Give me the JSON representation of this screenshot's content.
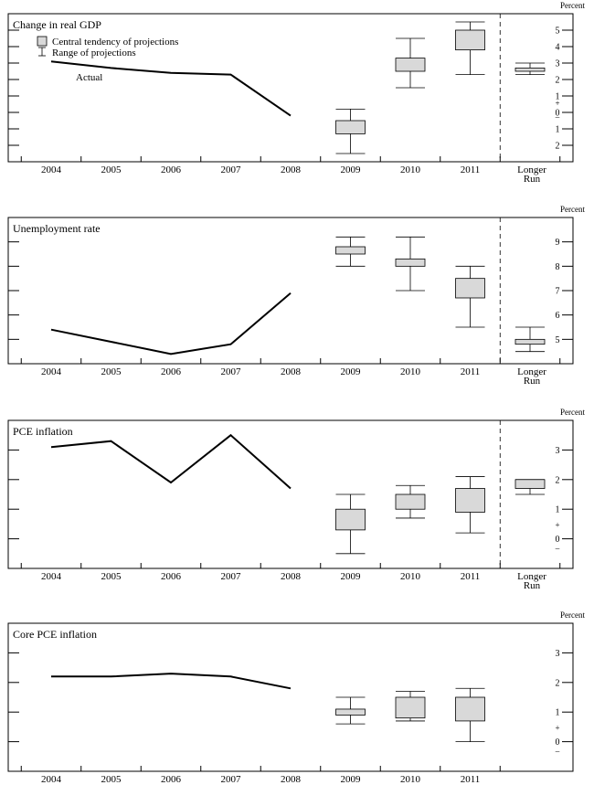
{
  "chart_data": [
    {
      "type": "box",
      "title": "Change in real GDP",
      "unit_label": "Percent",
      "categories": [
        "2004",
        "2005",
        "2006",
        "2007",
        "2008",
        "2009",
        "2010",
        "2011",
        "Longer Run"
      ],
      "ylim": [
        -3,
        6
      ],
      "y_ticks": [
        {
          "value": 5,
          "label": "5"
        },
        {
          "value": 4,
          "label": "4"
        },
        {
          "value": 3,
          "label": "3"
        },
        {
          "value": 2,
          "label": "2"
        },
        {
          "value": 1,
          "label": "1"
        },
        {
          "value": 0,
          "label": "0"
        },
        {
          "value": -1,
          "label": "1"
        },
        {
          "value": -2,
          "label": "2"
        }
      ],
      "sign_marks": {
        "plus": "+",
        "minus": "–",
        "between": [
          0,
          1
        ]
      },
      "legend": {
        "box_label": "Central tendency of projections",
        "range_label": "Range of projections"
      },
      "actual_label": "Actual",
      "actual": {
        "x": [
          "2004",
          "2005",
          "2006",
          "2007",
          "2008"
        ],
        "y": [
          3.1,
          2.7,
          2.4,
          2.3,
          -0.2
        ]
      },
      "projections": [
        {
          "x": "2009",
          "range": [
            -2.5,
            0.2
          ],
          "central": [
            -1.3,
            -0.5
          ]
        },
        {
          "x": "2010",
          "range": [
            1.5,
            4.5
          ],
          "central": [
            2.5,
            3.3
          ]
        },
        {
          "x": "2011",
          "range": [
            2.3,
            5.5
          ],
          "central": [
            3.8,
            5.0
          ]
        },
        {
          "x": "Longer Run",
          "range": [
            2.3,
            3.0
          ],
          "central": [
            2.5,
            2.7
          ]
        }
      ]
    },
    {
      "type": "box",
      "title": "Unemployment rate",
      "unit_label": "Percent",
      "categories": [
        "2004",
        "2005",
        "2006",
        "2007",
        "2008",
        "2009",
        "2010",
        "2011",
        "Longer Run"
      ],
      "ylim": [
        4,
        10
      ],
      "y_ticks": [
        {
          "value": 9,
          "label": "9"
        },
        {
          "value": 8,
          "label": "8"
        },
        {
          "value": 7,
          "label": "7"
        },
        {
          "value": 6,
          "label": "6"
        },
        {
          "value": 5,
          "label": "5"
        }
      ],
      "actual": {
        "x": [
          "2004",
          "2005",
          "2006",
          "2007",
          "2008"
        ],
        "y": [
          5.4,
          4.9,
          4.4,
          4.8,
          6.9
        ]
      },
      "projections": [
        {
          "x": "2009",
          "range": [
            8.0,
            9.2
          ],
          "central": [
            8.5,
            8.8
          ]
        },
        {
          "x": "2010",
          "range": [
            7.0,
            9.2
          ],
          "central": [
            8.0,
            8.3
          ]
        },
        {
          "x": "2011",
          "range": [
            5.5,
            8.0
          ],
          "central": [
            6.7,
            7.5
          ]
        },
        {
          "x": "Longer Run",
          "range": [
            4.5,
            5.5
          ],
          "central": [
            4.8,
            5.0
          ]
        }
      ]
    },
    {
      "type": "box",
      "title": "PCE inflation",
      "unit_label": "Percent",
      "categories": [
        "2004",
        "2005",
        "2006",
        "2007",
        "2008",
        "2009",
        "2010",
        "2011",
        "Longer Run"
      ],
      "ylim": [
        -1,
        4
      ],
      "y_ticks": [
        {
          "value": 3,
          "label": "3"
        },
        {
          "value": 2,
          "label": "2"
        },
        {
          "value": 1,
          "label": "1"
        },
        {
          "value": 0,
          "label": "0"
        }
      ],
      "sign_marks": {
        "plus": "+",
        "minus": "–",
        "between": [
          0,
          1
        ]
      },
      "actual": {
        "x": [
          "2004",
          "2005",
          "2006",
          "2007",
          "2008"
        ],
        "y": [
          3.1,
          3.3,
          1.9,
          3.5,
          1.7
        ]
      },
      "projections": [
        {
          "x": "2009",
          "range": [
            -0.5,
            1.5
          ],
          "central": [
            0.3,
            1.0
          ]
        },
        {
          "x": "2010",
          "range": [
            0.7,
            1.8
          ],
          "central": [
            1.0,
            1.5
          ]
        },
        {
          "x": "2011",
          "range": [
            0.2,
            2.1
          ],
          "central": [
            0.9,
            1.7
          ]
        },
        {
          "x": "Longer Run",
          "range": [
            1.5,
            2.0
          ],
          "central": [
            1.7,
            2.0
          ]
        }
      ]
    },
    {
      "type": "box",
      "title": "Core PCE inflation",
      "unit_label": "Percent",
      "categories": [
        "2004",
        "2005",
        "2006",
        "2007",
        "2008",
        "2009",
        "2010",
        "2011"
      ],
      "ylim": [
        -1,
        4
      ],
      "y_ticks": [
        {
          "value": 3,
          "label": "3"
        },
        {
          "value": 2,
          "label": "2"
        },
        {
          "value": 1,
          "label": "1"
        },
        {
          "value": 0,
          "label": "0"
        }
      ],
      "sign_marks": {
        "plus": "+",
        "minus": "–",
        "between": [
          0,
          1
        ]
      },
      "actual": {
        "x": [
          "2004",
          "2005",
          "2006",
          "2007",
          "2008"
        ],
        "y": [
          2.2,
          2.2,
          2.3,
          2.2,
          1.8
        ]
      },
      "projections": [
        {
          "x": "2009",
          "range": [
            0.6,
            1.5
          ],
          "central": [
            0.9,
            1.1
          ]
        },
        {
          "x": "2010",
          "range": [
            0.7,
            1.7
          ],
          "central": [
            0.8,
            1.5
          ]
        },
        {
          "x": "2011",
          "range": [
            0.0,
            1.8
          ],
          "central": [
            0.7,
            1.5
          ]
        }
      ]
    }
  ]
}
